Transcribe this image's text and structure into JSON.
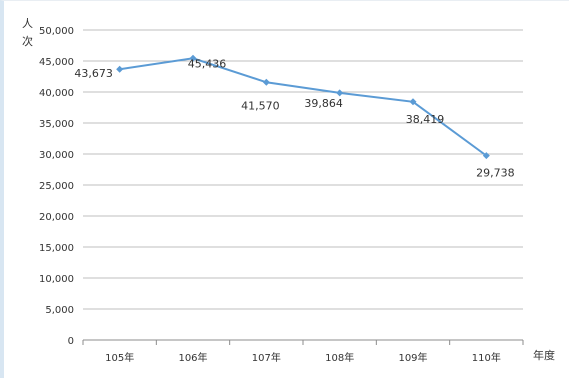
{
  "chart_data": {
    "type": "line",
    "categories": [
      "105年",
      "106年",
      "107年",
      "108年",
      "109年",
      "110年"
    ],
    "values": [
      43673,
      45436,
      41570,
      39864,
      38419,
      29738
    ],
    "data_labels": [
      "43,673",
      "45,436",
      "41,570",
      "39,864",
      "38,419",
      "29,738"
    ],
    "y_ticks": [
      "0",
      "5,000",
      "10,000",
      "15,000",
      "20,000",
      "25,000",
      "30,000",
      "35,000",
      "40,000",
      "45,000",
      "50,000"
    ],
    "ylim": [
      0,
      50000
    ],
    "ylabel": "人次",
    "xlabel": "年度",
    "grid": true,
    "line_color": "#5b9bd5",
    "grid_color": "#bfbfbf"
  }
}
